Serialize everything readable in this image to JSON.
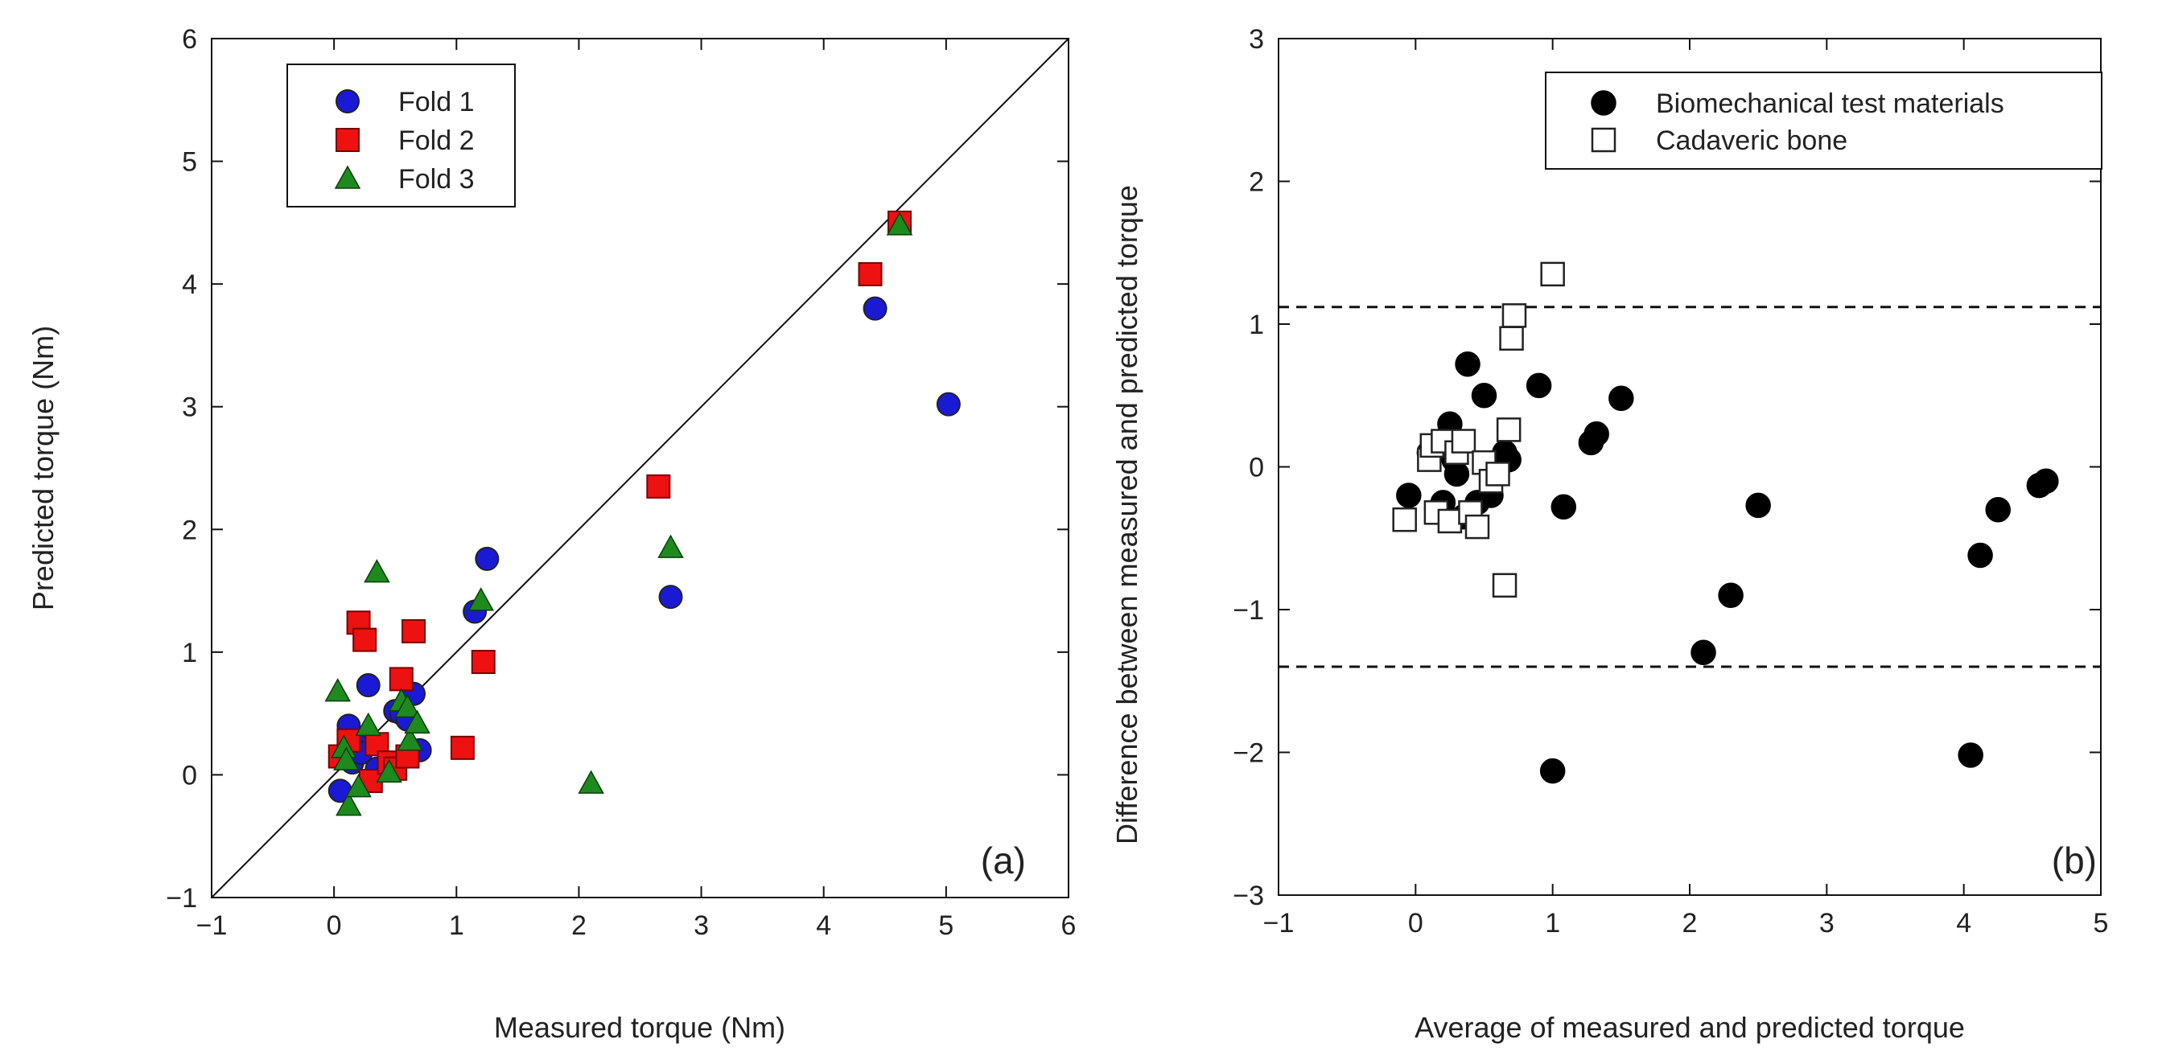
{
  "chart_data": [
    {
      "type": "scatter",
      "panel_label": "(a)",
      "xlabel": "Measured torque (Nm)",
      "ylabel": "Predicted torque (Nm)",
      "xlim": [
        -1,
        6
      ],
      "ylim": [
        -1,
        6
      ],
      "xticks": [
        -1,
        0,
        1,
        2,
        3,
        4,
        5,
        6
      ],
      "yticks": [
        -1,
        0,
        1,
        2,
        3,
        4,
        5,
        6
      ],
      "xtick_labels": [
        "−1",
        "0",
        "1",
        "2",
        "3",
        "4",
        "5",
        "6"
      ],
      "ytick_labels": [
        "−1",
        "0",
        "1",
        "2",
        "3",
        "4",
        "5",
        "6"
      ],
      "reference_line": {
        "kind": "identity",
        "from": [
          -1,
          -1
        ],
        "to": [
          6,
          6
        ]
      },
      "legend_position": "top-left",
      "series": [
        {
          "name": "Fold 1",
          "marker": "circle",
          "color": "#1a1ad6",
          "points": [
            [
              0.05,
              -0.13
            ],
            [
              0.12,
              0.4
            ],
            [
              0.15,
              0.1
            ],
            [
              0.18,
              0.25
            ],
            [
              0.22,
              0.18
            ],
            [
              0.28,
              0.73
            ],
            [
              0.35,
              0.05
            ],
            [
              0.5,
              0.52
            ],
            [
              0.55,
              0.5
            ],
            [
              0.6,
              0.45
            ],
            [
              0.65,
              0.66
            ],
            [
              0.7,
              0.2
            ],
            [
              1.15,
              1.33
            ],
            [
              1.25,
              1.76
            ],
            [
              2.75,
              1.45
            ],
            [
              4.42,
              3.8
            ],
            [
              5.02,
              3.02
            ]
          ]
        },
        {
          "name": "Fold 2",
          "marker": "square",
          "color": "#ee1111",
          "points": [
            [
              0.05,
              0.15
            ],
            [
              0.12,
              0.28
            ],
            [
              0.2,
              1.24
            ],
            [
              0.25,
              1.1
            ],
            [
              0.3,
              -0.05
            ],
            [
              0.35,
              0.25
            ],
            [
              0.45,
              0.1
            ],
            [
              0.5,
              0.05
            ],
            [
              0.55,
              0.78
            ],
            [
              0.6,
              0.15
            ],
            [
              0.65,
              1.17
            ],
            [
              1.05,
              0.22
            ],
            [
              1.22,
              0.92
            ],
            [
              2.65,
              2.35
            ],
            [
              4.38,
              4.08
            ],
            [
              4.62,
              4.5
            ]
          ]
        },
        {
          "name": "Fold 3",
          "marker": "triangle",
          "color": "#1e8a1e",
          "points": [
            [
              0.03,
              0.68
            ],
            [
              0.08,
              0.22
            ],
            [
              0.1,
              0.12
            ],
            [
              0.12,
              -0.25
            ],
            [
              0.2,
              -0.1
            ],
            [
              0.28,
              0.4
            ],
            [
              0.35,
              1.65
            ],
            [
              0.45,
              0.02
            ],
            [
              0.55,
              0.6
            ],
            [
              0.6,
              0.55
            ],
            [
              0.62,
              0.28
            ],
            [
              0.68,
              0.42
            ],
            [
              1.2,
              1.42
            ],
            [
              2.1,
              -0.07
            ],
            [
              2.75,
              1.85
            ],
            [
              4.62,
              4.48
            ]
          ]
        }
      ]
    },
    {
      "type": "scatter",
      "panel_label": "(b)",
      "xlabel": "Average of measured and predicted torque",
      "ylabel": "Difference between measured and predicted torque",
      "xlim": [
        -1,
        5
      ],
      "ylim": [
        -3,
        3
      ],
      "xticks": [
        -1,
        0,
        1,
        2,
        3,
        4,
        5
      ],
      "yticks": [
        -3,
        -2,
        -1,
        0,
        1,
        2,
        3
      ],
      "xtick_labels": [
        "−1",
        "0",
        "1",
        "2",
        "3",
        "4",
        "5"
      ],
      "ytick_labels": [
        "−3",
        "−2",
        "−1",
        "0",
        "1",
        "2",
        "3"
      ],
      "reference_lines": [
        {
          "kind": "horizontal-dashed",
          "y": 1.12
        },
        {
          "kind": "horizontal-dashed",
          "y": -1.4
        }
      ],
      "legend_position": "top-right",
      "series": [
        {
          "name": "Biomechanical test materials",
          "marker": "filled-circle",
          "color": "#000000",
          "points": [
            [
              -0.05,
              -0.2
            ],
            [
              0.1,
              0.1
            ],
            [
              0.2,
              -0.25
            ],
            [
              0.25,
              0.3
            ],
            [
              0.28,
              0.05
            ],
            [
              0.3,
              -0.05
            ],
            [
              0.35,
              -0.35
            ],
            [
              0.38,
              0.72
            ],
            [
              0.45,
              -0.25
            ],
            [
              0.5,
              0.5
            ],
            [
              0.55,
              -0.2
            ],
            [
              0.65,
              0.1
            ],
            [
              0.68,
              0.05
            ],
            [
              0.9,
              0.57
            ],
            [
              1.0,
              -2.13
            ],
            [
              1.08,
              -0.28
            ],
            [
              1.28,
              0.17
            ],
            [
              1.32,
              0.23
            ],
            [
              1.5,
              0.48
            ],
            [
              2.1,
              -1.3
            ],
            [
              2.3,
              -0.9
            ],
            [
              2.5,
              -0.27
            ],
            [
              4.05,
              -2.02
            ],
            [
              4.12,
              -0.62
            ],
            [
              4.25,
              -0.3
            ],
            [
              4.55,
              -0.13
            ],
            [
              4.6,
              -0.1
            ]
          ]
        },
        {
          "name": "Cadaveric bone",
          "marker": "open-square",
          "color": "#000000",
          "points": [
            [
              -0.08,
              -0.37
            ],
            [
              0.1,
              0.05
            ],
            [
              0.12,
              0.15
            ],
            [
              0.15,
              -0.32
            ],
            [
              0.2,
              0.18
            ],
            [
              0.25,
              -0.38
            ],
            [
              0.3,
              0.1
            ],
            [
              0.35,
              0.18
            ],
            [
              0.4,
              -0.32
            ],
            [
              0.45,
              -0.42
            ],
            [
              0.5,
              0.03
            ],
            [
              0.55,
              -0.1
            ],
            [
              0.6,
              -0.05
            ],
            [
              0.65,
              -0.83
            ],
            [
              0.68,
              0.26
            ],
            [
              0.7,
              0.9
            ],
            [
              0.72,
              1.06
            ],
            [
              1.0,
              1.35
            ]
          ]
        }
      ]
    }
  ]
}
